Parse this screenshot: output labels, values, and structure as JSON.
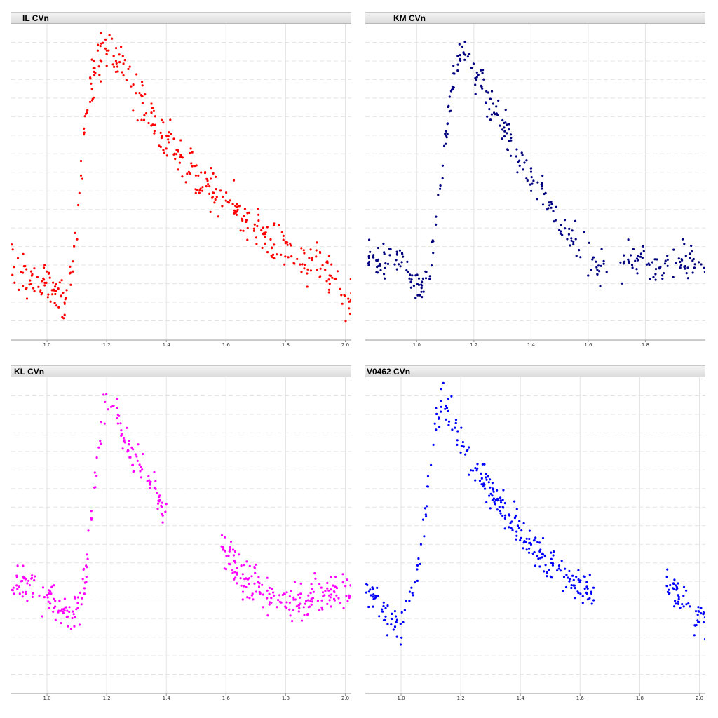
{
  "panels": [
    {
      "id": "p1",
      "title": "IL CVn",
      "color": "#ff0000"
    },
    {
      "id": "p2",
      "title": "KM CVn",
      "color": "#000080"
    },
    {
      "id": "p3",
      "title": "KL CVn",
      "color": "#ff00ff"
    },
    {
      "id": "p4",
      "title": "V0462 CVn",
      "color": "#0000ff"
    }
  ],
  "chart_data": [
    {
      "type": "scatter",
      "title": "IL CVn",
      "color": "#ff0000",
      "xlim": [
        0.88,
        2.02
      ],
      "ylim": [
        0,
        1
      ],
      "grid": true,
      "xticks": [
        "1.0",
        "1.2",
        "1.4",
        "1.6",
        "1.8",
        "2.0"
      ],
      "anchors": [
        [
          0.88,
          0.24
        ],
        [
          0.92,
          0.22
        ],
        [
          0.96,
          0.16
        ],
        [
          1.0,
          0.19
        ],
        [
          1.04,
          0.13
        ],
        [
          1.06,
          0.12
        ],
        [
          1.08,
          0.22
        ],
        [
          1.1,
          0.35
        ],
        [
          1.12,
          0.62
        ],
        [
          1.15,
          0.82
        ],
        [
          1.18,
          0.9
        ],
        [
          1.2,
          0.92
        ],
        [
          1.22,
          0.91
        ],
        [
          1.26,
          0.85
        ],
        [
          1.3,
          0.77
        ],
        [
          1.35,
          0.7
        ],
        [
          1.4,
          0.64
        ],
        [
          1.45,
          0.58
        ],
        [
          1.5,
          0.52
        ],
        [
          1.55,
          0.48
        ],
        [
          1.6,
          0.44
        ],
        [
          1.65,
          0.4
        ],
        [
          1.7,
          0.36
        ],
        [
          1.75,
          0.32
        ],
        [
          1.8,
          0.29
        ],
        [
          1.85,
          0.26
        ],
        [
          1.9,
          0.23
        ],
        [
          1.95,
          0.21
        ],
        [
          2.0,
          0.13
        ]
      ],
      "gaps": [],
      "noise": 0.035,
      "n": 400
    },
    {
      "type": "scatter",
      "title": "KM CVn",
      "color": "#000080",
      "xlim": [
        0.82,
        2.01
      ],
      "ylim": [
        0,
        1
      ],
      "grid": true,
      "xticks": [
        "1.0",
        "1.2",
        "1.4",
        "1.6",
        "1.8"
      ],
      "anchors": [
        [
          0.82,
          0.25
        ],
        [
          0.9,
          0.25
        ],
        [
          0.96,
          0.24
        ],
        [
          0.99,
          0.18
        ],
        [
          1.02,
          0.16
        ],
        [
          1.05,
          0.26
        ],
        [
          1.08,
          0.46
        ],
        [
          1.1,
          0.62
        ],
        [
          1.12,
          0.78
        ],
        [
          1.15,
          0.88
        ],
        [
          1.17,
          0.91
        ],
        [
          1.2,
          0.85
        ],
        [
          1.25,
          0.75
        ],
        [
          1.3,
          0.67
        ],
        [
          1.35,
          0.58
        ],
        [
          1.4,
          0.51
        ],
        [
          1.45,
          0.44
        ],
        [
          1.5,
          0.38
        ],
        [
          1.55,
          0.33
        ],
        [
          1.58,
          0.28
        ],
        [
          1.62,
          0.23
        ],
        [
          1.66,
          0.21
        ],
        [
          1.72,
          0.24
        ],
        [
          1.8,
          0.24
        ],
        [
          1.9,
          0.24
        ],
        [
          2.0,
          0.23
        ]
      ],
      "gaps": [
        [
          1.67,
          1.71
        ]
      ],
      "noise": 0.03,
      "n": 340
    },
    {
      "type": "scatter",
      "title": "KL CVn",
      "color": "#ff00ff",
      "xlim": [
        0.88,
        2.02
      ],
      "ylim": [
        0,
        1
      ],
      "grid": true,
      "xticks": [
        "1.0",
        "1.2",
        "1.4",
        "1.6",
        "1.8",
        "2.0"
      ],
      "anchors": [
        [
          0.88,
          0.35
        ],
        [
          0.95,
          0.34
        ],
        [
          1.0,
          0.31
        ],
        [
          1.05,
          0.27
        ],
        [
          1.08,
          0.25
        ],
        [
          1.11,
          0.29
        ],
        [
          1.13,
          0.38
        ],
        [
          1.15,
          0.55
        ],
        [
          1.17,
          0.75
        ],
        [
          1.19,
          0.88
        ],
        [
          1.21,
          0.92
        ],
        [
          1.24,
          0.86
        ],
        [
          1.28,
          0.77
        ],
        [
          1.32,
          0.71
        ],
        [
          1.36,
          0.66
        ],
        [
          1.39,
          0.55
        ],
        [
          1.58,
          0.44
        ],
        [
          1.62,
          0.42
        ],
        [
          1.66,
          0.37
        ],
        [
          1.7,
          0.34
        ],
        [
          1.75,
          0.31
        ],
        [
          1.8,
          0.29
        ],
        [
          1.86,
          0.29
        ],
        [
          1.92,
          0.31
        ],
        [
          1.97,
          0.32
        ],
        [
          2.0,
          0.32
        ]
      ],
      "gaps": [
        [
          1.4,
          1.58
        ]
      ],
      "noise": 0.03,
      "n": 380
    },
    {
      "type": "scatter",
      "title": "V0462 CVn",
      "color": "#0000ff",
      "xlim": [
        0.88,
        2.02
      ],
      "ylim": [
        0,
        1
      ],
      "grid": true,
      "xticks": [
        "1.0",
        "1.2",
        "1.4",
        "1.6",
        "1.8",
        "2.0"
      ],
      "anchors": [
        [
          0.88,
          0.33
        ],
        [
          0.92,
          0.3
        ],
        [
          0.96,
          0.24
        ],
        [
          1.0,
          0.22
        ],
        [
          1.03,
          0.3
        ],
        [
          1.05,
          0.35
        ],
        [
          1.08,
          0.55
        ],
        [
          1.1,
          0.75
        ],
        [
          1.12,
          0.88
        ],
        [
          1.14,
          0.93
        ],
        [
          1.16,
          0.88
        ],
        [
          1.2,
          0.8
        ],
        [
          1.25,
          0.71
        ],
        [
          1.3,
          0.64
        ],
        [
          1.35,
          0.57
        ],
        [
          1.4,
          0.51
        ],
        [
          1.45,
          0.45
        ],
        [
          1.5,
          0.41
        ],
        [
          1.55,
          0.37
        ],
        [
          1.6,
          0.34
        ],
        [
          1.64,
          0.33
        ],
        [
          1.9,
          0.33
        ],
        [
          1.95,
          0.28
        ],
        [
          1.98,
          0.24
        ]
      ],
      "gaps": [
        [
          1.65,
          1.89
        ]
      ],
      "noise": 0.028,
      "n": 340
    }
  ]
}
